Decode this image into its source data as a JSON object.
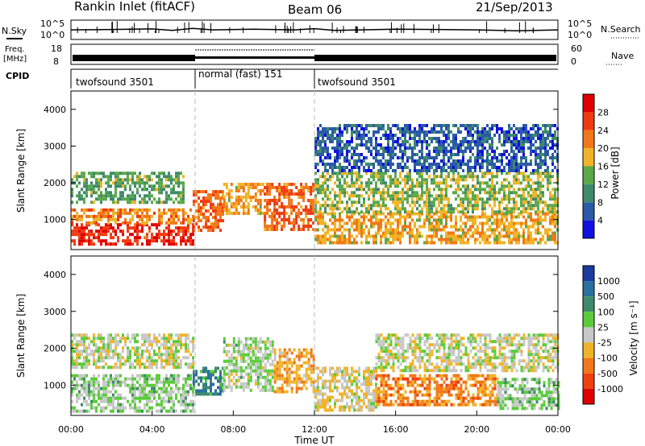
{
  "header": {
    "title": "Rankin Inlet (fitACF)",
    "beam": "Beam 06",
    "date": "21/Sep/2013"
  },
  "nsky_panel": {
    "left_label": "N.Sky",
    "right_label": "N.Search",
    "left_ticks": [
      "10^5",
      "10^0"
    ],
    "right_ticks": [
      "10^5",
      "10^0"
    ]
  },
  "freq_panel": {
    "left_label_line1": "Freq.",
    "left_label_line2": "[MHz]",
    "right_label": "Nave",
    "left_ticks": [
      "18",
      "8"
    ],
    "right_ticks": [
      "60",
      "0"
    ]
  },
  "cpid": {
    "label": "CPID",
    "segments": [
      {
        "start_h": 0,
        "end_h": 6,
        "name": "twofsound 3501"
      },
      {
        "start_h": 6,
        "end_h": 12,
        "name": "normal (fast) 151"
      },
      {
        "start_h": 12,
        "end_h": 24,
        "name": "twofsound 3501"
      }
    ]
  },
  "power_panel": {
    "ylabel": "Slant Range [km]",
    "yticks": [
      "1000",
      "2000",
      "3000",
      "4000"
    ],
    "colorbar_label": "Power [dB]",
    "colorbar_ticks": [
      "4",
      "8",
      "12",
      "16",
      "20",
      "24",
      "28"
    ],
    "colors": [
      "#1010e0",
      "#2a5aa8",
      "#3f8a6a",
      "#5aa84a",
      "#f0b428",
      "#f07818",
      "#f03a10",
      "#e00000"
    ]
  },
  "velocity_panel": {
    "ylabel": "Slant Range [km]",
    "yticks": [
      "1000",
      "2000",
      "3000",
      "4000"
    ],
    "colorbar_label": "Velocity [m s⁻¹]",
    "colorbar_ticks": [
      "1000",
      "500",
      "100",
      "25",
      "-25",
      "-100",
      "-500",
      "-1000"
    ],
    "colors": [
      "#1a3aa0",
      "#2a70a0",
      "#3f8a6a",
      "#5acc3a",
      "#c8c8c8",
      "#f0b428",
      "#f07818",
      "#f04010",
      "#e00000"
    ]
  },
  "x_axis": {
    "label": "Time UT",
    "ticks": [
      "00:00",
      "04:00",
      "08:00",
      "12:00",
      "16:00",
      "20:00",
      "00:00"
    ]
  },
  "chart_data": [
    {
      "type": "line",
      "title": "N.Sky",
      "x": [
        0,
        2,
        4,
        5,
        6,
        7,
        9,
        11,
        12,
        13,
        16,
        18,
        20,
        22,
        24
      ],
      "y": [
        300,
        400,
        600,
        200,
        900,
        300,
        500,
        300,
        700,
        200,
        500,
        400,
        300,
        150,
        300
      ],
      "ylabel": "N.Sky",
      "yscale": "log",
      "ylim": [
        1,
        100000
      ],
      "xlim": [
        0,
        24
      ]
    },
    {
      "type": "line",
      "title": "Frequency",
      "x": [
        0,
        6,
        12,
        24
      ],
      "y": [
        11,
        11,
        11,
        11
      ],
      "ylabel": "Freq. [MHz]",
      "ylim": [
        8,
        18
      ]
    },
    {
      "type": "heatmap",
      "title": "Power",
      "xlabel": "Time UT",
      "ylabel": "Slant Range [km]",
      "xlim": [
        0,
        24
      ],
      "ylim": [
        180,
        4500
      ],
      "colorbar": {
        "label": "Power [dB]",
        "range": [
          0,
          30
        ]
      },
      "regions": [
        {
          "t0": 0.0,
          "t1": 6.0,
          "r0": 300,
          "r1": 900,
          "value": 26
        },
        {
          "t0": 0.0,
          "t1": 6.0,
          "r0": 900,
          "r1": 1300,
          "value": 20
        },
        {
          "t0": 0.0,
          "t1": 5.5,
          "r0": 1500,
          "r1": 2300,
          "value": 12
        },
        {
          "t0": 6.0,
          "t1": 7.5,
          "r0": 700,
          "r1": 1800,
          "value": 22
        },
        {
          "t0": 7.5,
          "t1": 9.5,
          "r0": 1200,
          "r1": 2000,
          "value": 18
        },
        {
          "t0": 9.5,
          "t1": 12.0,
          "r0": 700,
          "r1": 2000,
          "value": 22
        },
        {
          "t0": 12.0,
          "t1": 24.0,
          "r0": 400,
          "r1": 1200,
          "value": 18
        },
        {
          "t0": 12.0,
          "t1": 24.0,
          "r0": 1200,
          "r1": 2300,
          "value": 14
        },
        {
          "t0": 12.0,
          "t1": 24.0,
          "r0": 2300,
          "r1": 3600,
          "value": 6
        }
      ]
    },
    {
      "type": "heatmap",
      "title": "Velocity",
      "xlabel": "Time UT",
      "ylabel": "Slant Range [km]",
      "xlim": [
        0,
        24
      ],
      "ylim": [
        180,
        4500
      ],
      "colorbar": {
        "label": "Velocity [m s⁻¹]",
        "range": [
          -1000,
          1000
        ]
      },
      "regions": [
        {
          "t0": 0.0,
          "t1": 6.0,
          "r0": 300,
          "r1": 1300,
          "value": 150
        },
        {
          "t0": 0.0,
          "t1": 6.0,
          "r0": 1500,
          "r1": 2400,
          "value": 0
        },
        {
          "t0": 6.0,
          "t1": 7.5,
          "r0": 800,
          "r1": 1500,
          "value": 500
        },
        {
          "t0": 7.5,
          "t1": 10.0,
          "r0": 900,
          "r1": 2300,
          "value": 100
        },
        {
          "t0": 10.0,
          "t1": 12.0,
          "r0": 800,
          "r1": 2000,
          "value": -300
        },
        {
          "t0": 12.0,
          "t1": 15.0,
          "r0": 300,
          "r1": 1500,
          "value": -80
        },
        {
          "t0": 15.0,
          "t1": 21.0,
          "r0": 500,
          "r1": 1300,
          "value": -400
        },
        {
          "t0": 15.0,
          "t1": 24.0,
          "r0": 1400,
          "r1": 2400,
          "value": 0
        },
        {
          "t0": 21.0,
          "t1": 24.0,
          "r0": 400,
          "r1": 1200,
          "value": 150
        }
      ]
    }
  ]
}
